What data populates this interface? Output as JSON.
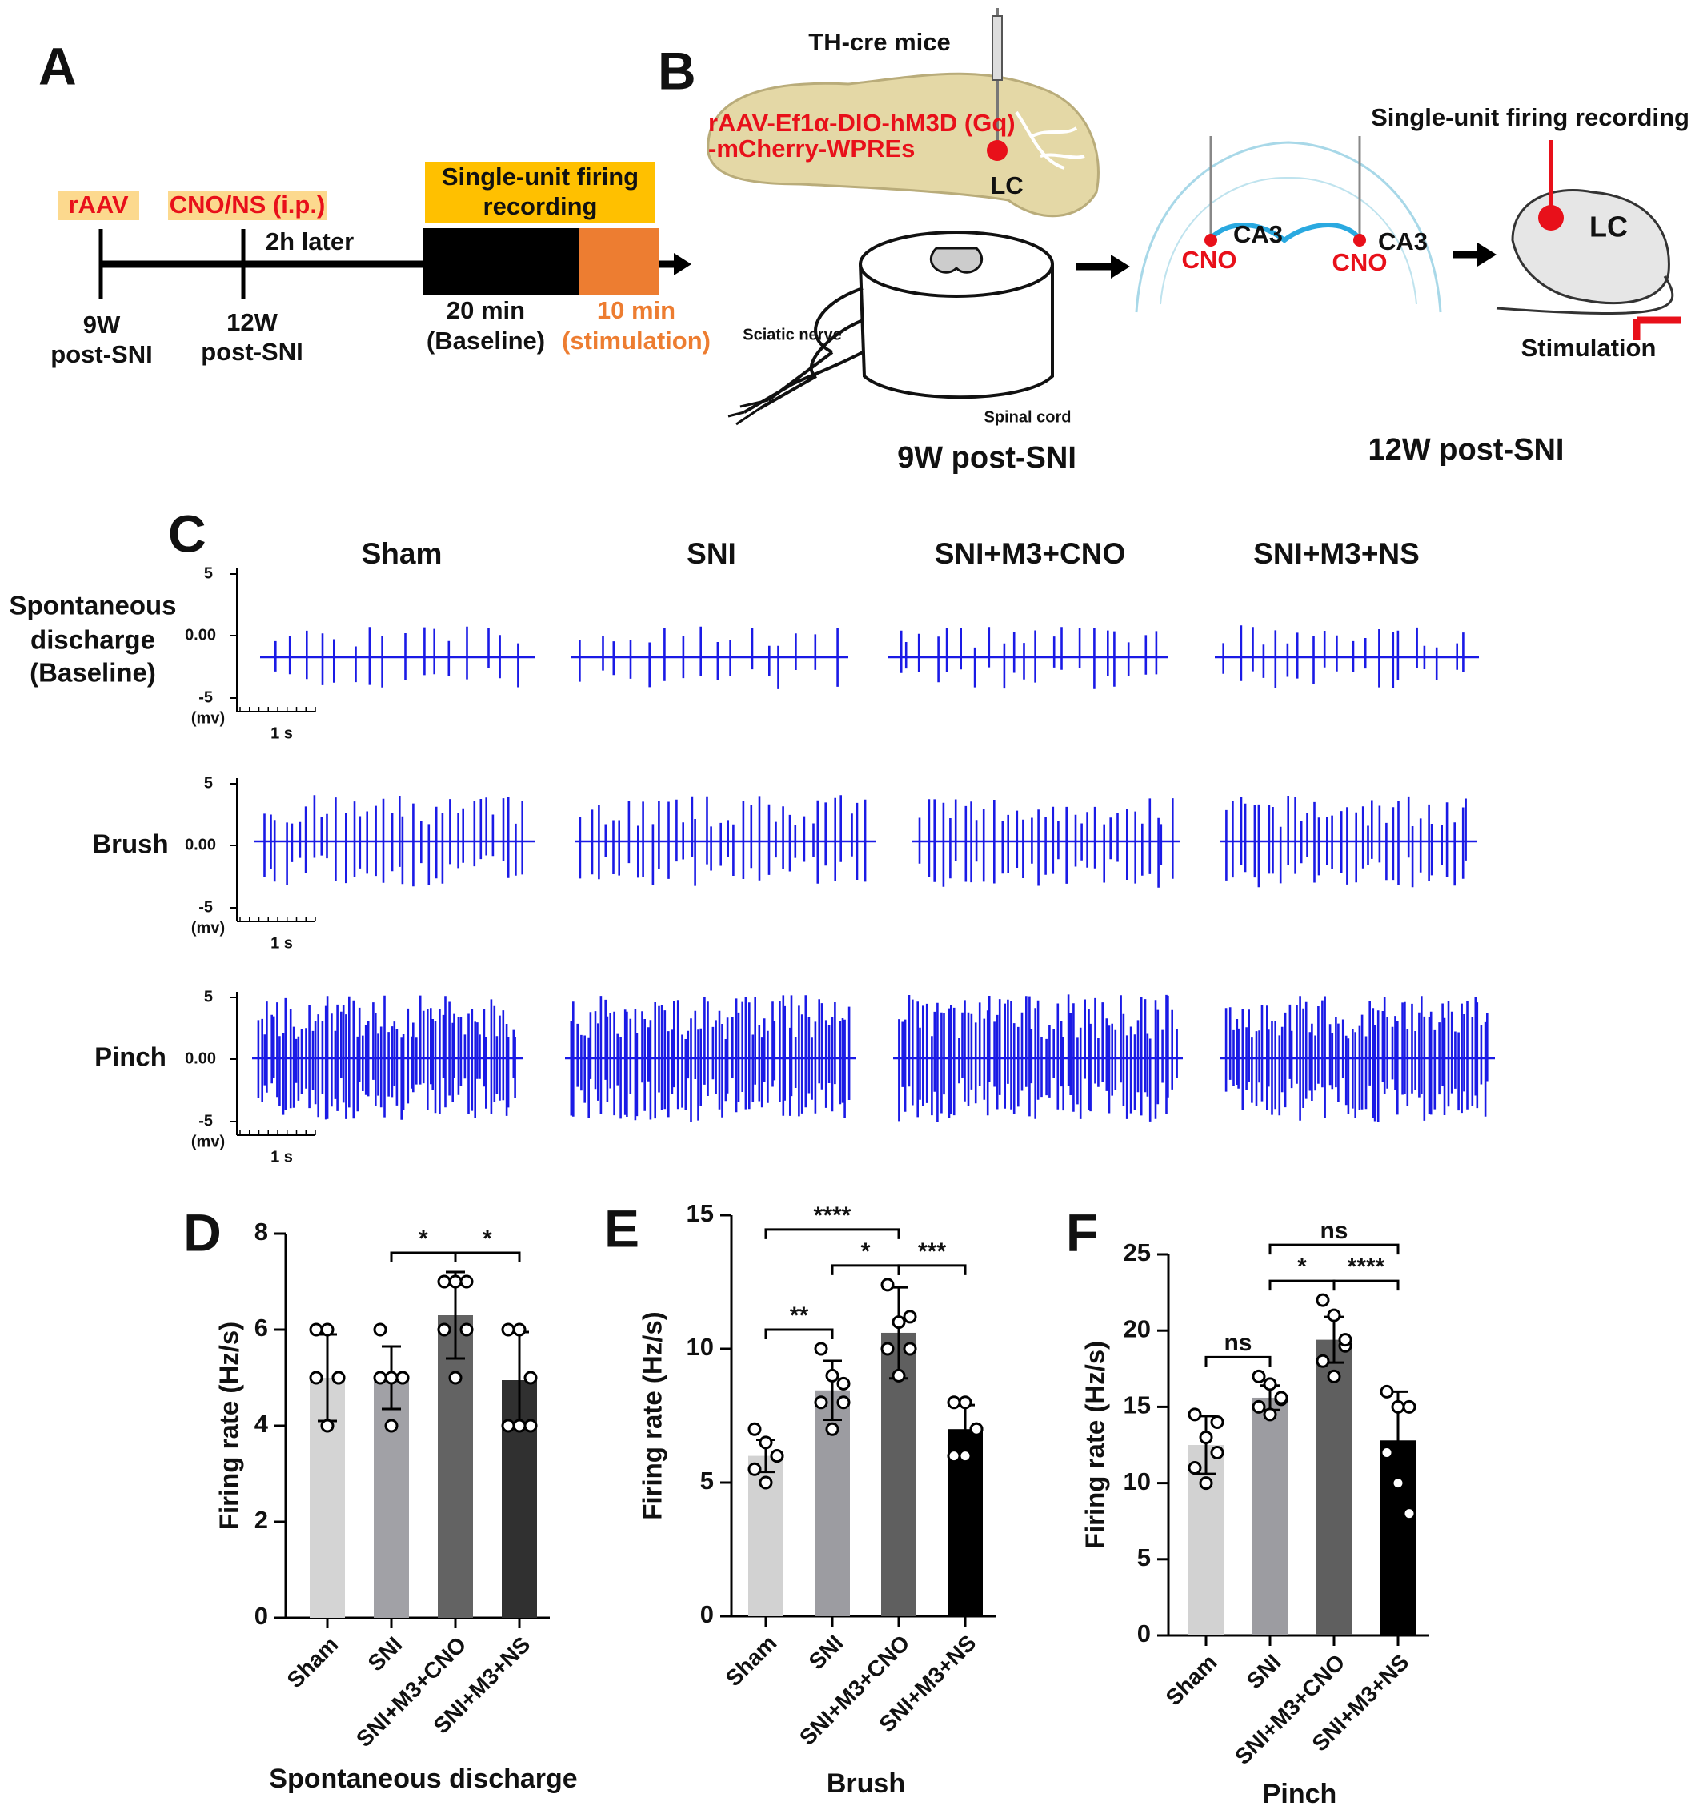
{
  "panel_a": {
    "label": "A",
    "raav": "rAAV",
    "cno": "CNO/NS (i.p.)",
    "delay": "2h later",
    "recording": [
      "Single-unit firing",
      "recording"
    ],
    "t9": [
      "9W",
      "post-SNI"
    ],
    "t12": [
      "12W",
      "post-SNI"
    ],
    "baseline": [
      "20 min",
      "(Baseline)"
    ],
    "stimulation": [
      "10 min",
      "(stimulation)"
    ]
  },
  "panel_b": {
    "label": "B",
    "mice": "TH-cre mice",
    "virus": [
      "rAAV-Ef1α-DIO-hM3D (Gq)",
      "-mCherry-WPREs"
    ],
    "lc": "LC",
    "sciatic": "Sciatic nerve",
    "spinal": "Spinal cord",
    "t9": "9W post-SNI",
    "cno": "CNO",
    "ca3": "CA3",
    "recording": "Single-unit firing recording",
    "stimulation": "Stimulation",
    "t12": "12W post-SNI"
  },
  "panel_c": {
    "label": "C",
    "groups": [
      "Sham",
      "SNI",
      "SNI+M3+CNO",
      "SNI+M3+NS"
    ],
    "rows": [
      [
        "Spontaneous",
        "discharge",
        "(Baseline)"
      ],
      [
        "Brush"
      ],
      [
        "Pinch"
      ]
    ],
    "scale": {
      "top": "5",
      "zero": "0.00",
      "bottom": "-5",
      "unit": "(mv)",
      "time": "1 s"
    }
  },
  "chart_data": [
    {
      "type": "bar",
      "label": "D",
      "ylabel": "Firing rate (Hz/s)",
      "xlabel": "Spontaneous discharge",
      "categories": [
        "Sham",
        "SNI",
        "SNI+M3+CNO",
        "SNI+M3+NS"
      ],
      "values": [
        5.0,
        5.0,
        6.3,
        4.95
      ],
      "errors": [
        0.9,
        0.65,
        0.9,
        1.0
      ],
      "points": [
        [
          6,
          6,
          5,
          5,
          4,
          5
        ],
        [
          6,
          5,
          5,
          5,
          4,
          5
        ],
        [
          7,
          7,
          6,
          6,
          5,
          7
        ],
        [
          6,
          6,
          5,
          4,
          4,
          4
        ]
      ],
      "colors": [
        "#d4d4d4",
        "#a1a1a6",
        "#636363",
        "#303030"
      ],
      "ylim": [
        0,
        8
      ],
      "yticks": [
        0,
        2,
        4,
        6,
        8
      ],
      "annotations": [
        {
          "text": "*",
          "between": [
            "SNI",
            "SNI+M3+CNO"
          ]
        },
        {
          "text": "*",
          "between": [
            "SNI+M3+CNO",
            "SNI+M3+NS"
          ]
        }
      ]
    },
    {
      "type": "bar",
      "label": "E",
      "ylabel": "Firing rate (Hz/s)",
      "xlabel": "Brush",
      "categories": [
        "Sham",
        "SNI",
        "SNI+M3+CNO",
        "SNI+M3+NS"
      ],
      "values": [
        6.0,
        8.45,
        10.6,
        7.0
      ],
      "errors": [
        0.6,
        1.1,
        1.7,
        0.9
      ],
      "points": [
        [
          7,
          6.5,
          6,
          5.5,
          5,
          6
        ],
        [
          10,
          9,
          8,
          8,
          7,
          8.7
        ],
        [
          12.4,
          11,
          10,
          10,
          9,
          11.2
        ],
        [
          8,
          8,
          7,
          6,
          6,
          7
        ]
      ],
      "colors": [
        "#d2d2d2",
        "#9c9ca1",
        "#5f5f5f",
        "#000000"
      ],
      "ylim": [
        0,
        15
      ],
      "yticks": [
        0,
        5,
        10,
        15
      ],
      "annotations": [
        {
          "text": "**",
          "between": [
            "Sham",
            "SNI"
          ]
        },
        {
          "text": "*",
          "between": [
            "SNI",
            "SNI+M3+CNO"
          ]
        },
        {
          "text": "***",
          "between": [
            "SNI+M3+CNO",
            "SNI+M3+NS"
          ]
        },
        {
          "text": "****",
          "between": [
            "Sham",
            "SNI+M3+CNO"
          ]
        }
      ]
    },
    {
      "type": "bar",
      "label": "F",
      "ylabel": "Firing rate (Hz/s)",
      "xlabel": "Pinch",
      "categories": [
        "Sham",
        "SNI",
        "SNI+M3+CNO",
        "SNI+M3+NS"
      ],
      "values": [
        12.5,
        15.6,
        19.4,
        12.8
      ],
      "errors": [
        1.9,
        0.8,
        1.5,
        3.2
      ],
      "points": [
        [
          14.5,
          13,
          12,
          11,
          10,
          14
        ],
        [
          17,
          16.5,
          15.5,
          15,
          14.5,
          15.6
        ],
        [
          22,
          21,
          19,
          18,
          17,
          19.4
        ],
        [
          16,
          15,
          15,
          12,
          10,
          8
        ]
      ],
      "colors": [
        "#d2d2d2",
        "#9c9ca1",
        "#5f5f5f",
        "#000000"
      ],
      "ylim": [
        0,
        25
      ],
      "yticks": [
        0,
        5,
        10,
        15,
        20,
        25
      ],
      "annotations": [
        {
          "text": "ns",
          "between": [
            "Sham",
            "SNI"
          ]
        },
        {
          "text": "*",
          "between": [
            "SNI",
            "SNI+M3+CNO"
          ]
        },
        {
          "text": "****",
          "between": [
            "SNI+M3+CNO",
            "SNI+M3+NS"
          ]
        },
        {
          "text": "ns",
          "between": [
            "SNI",
            "SNI+M3+NS"
          ]
        }
      ]
    }
  ]
}
